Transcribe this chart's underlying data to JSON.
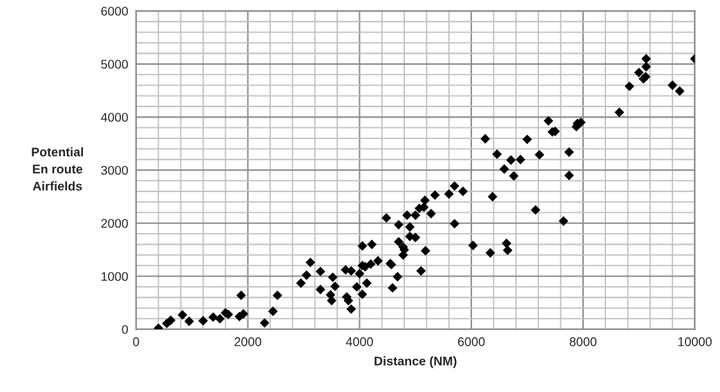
{
  "chart_data": {
    "type": "scatter",
    "xlabel": "Distance (NM)",
    "ylabel": "Potential\nEn route\nAirfields",
    "marker": "diamond",
    "grid": true,
    "xlim": [
      0,
      10000
    ],
    "ylim": [
      0,
      6000
    ],
    "xticks": [
      0,
      {
        "value": 400,
        "label": null
      },
      {
        "value": 800,
        "label": null
      },
      {
        "value": 1200,
        "label": null
      },
      {
        "value": 1600,
        "label": null
      },
      2000,
      {
        "value": 2400,
        "label": null
      },
      {
        "value": 2800,
        "label": null
      },
      {
        "value": 3200,
        "label": null
      },
      {
        "value": 3600,
        "label": null
      },
      4000,
      {
        "value": 4400,
        "label": null
      },
      {
        "value": 4800,
        "label": null
      },
      {
        "value": 5200,
        "label": null
      },
      {
        "value": 5600,
        "label": null
      },
      6000,
      {
        "value": 6400,
        "label": null
      },
      {
        "value": 6800,
        "label": null
      },
      {
        "value": 7200,
        "label": null
      },
      {
        "value": 7600,
        "label": null
      },
      8000,
      {
        "value": 8400,
        "label": null
      },
      {
        "value": 8800,
        "label": null
      },
      {
        "value": 9200,
        "label": null
      },
      {
        "value": 9600,
        "label": null
      },
      10000
    ],
    "yticks": [
      0,
      {
        "value": 200,
        "label": null
      },
      {
        "value": 400,
        "label": null
      },
      {
        "value": 600,
        "label": null
      },
      {
        "value": 800,
        "label": null
      },
      1000,
      {
        "value": 1200,
        "label": null
      },
      {
        "value": 1400,
        "label": null
      },
      {
        "value": 1600,
        "label": null
      },
      {
        "value": 1800,
        "label": null
      },
      2000,
      {
        "value": 2200,
        "label": null
      },
      {
        "value": 2400,
        "label": null
      },
      {
        "value": 2600,
        "label": null
      },
      {
        "value": 2800,
        "label": null
      },
      3000,
      {
        "value": 3200,
        "label": null
      },
      {
        "value": 3400,
        "label": null
      },
      {
        "value": 3600,
        "label": null
      },
      {
        "value": 3800,
        "label": null
      },
      4000,
      {
        "value": 4200,
        "label": null
      },
      {
        "value": 4400,
        "label": null
      },
      {
        "value": 4600,
        "label": null
      },
      {
        "value": 4800,
        "label": null
      },
      5000,
      {
        "value": 5200,
        "label": null
      },
      {
        "value": 5400,
        "label": null
      },
      {
        "value": 5600,
        "label": null
      },
      {
        "value": 5800,
        "label": null
      },
      6000
    ],
    "series": [
      {
        "color": "#000000",
        "x": [
          400,
          550,
          620,
          830,
          950,
          1200,
          1380,
          1500,
          1600,
          1650,
          1850,
          1880,
          1920,
          2300,
          2450,
          2530,
          2950,
          3050,
          3120,
          3300,
          3300,
          3480,
          3500,
          3520,
          3560,
          3750,
          3770,
          3800,
          3850,
          3850,
          3950,
          4000,
          4050,
          4050,
          4050,
          4100,
          4130,
          4200,
          4220,
          4330,
          4480,
          4550,
          4570,
          4590,
          4680,
          4700,
          4700,
          4780,
          4780,
          4800,
          4850,
          4900,
          4900,
          5000,
          5000,
          5070,
          5100,
          5150,
          5170,
          5180,
          5280,
          5350,
          5600,
          5700,
          5700,
          5850,
          6030,
          6250,
          6340,
          6380,
          6460,
          6590,
          6630,
          6650,
          6710,
          6760,
          6880,
          7000,
          7150,
          7220,
          7380,
          7450,
          7500,
          7650,
          7750,
          7750,
          7880,
          7900,
          7960,
          8650,
          8830,
          9000,
          9080,
          9120,
          9130,
          9130,
          9600,
          9730,
          10000
        ],
        "values": [
          20,
          110,
          170,
          270,
          150,
          160,
          230,
          200,
          310,
          280,
          240,
          640,
          290,
          120,
          340,
          640,
          870,
          1020,
          1260,
          1090,
          750,
          650,
          540,
          980,
          810,
          1120,
          610,
          540,
          1100,
          380,
          800,
          1050,
          660,
          1570,
          1200,
          1180,
          870,
          1230,
          1600,
          1290,
          2100,
          1240,
          1220,
          780,
          990,
          1970,
          1650,
          1400,
          1550,
          1500,
          2150,
          1930,
          1750,
          1730,
          2150,
          2280,
          1100,
          2300,
          2430,
          1480,
          2180,
          2530,
          2550,
          2700,
          1990,
          2600,
          1580,
          3590,
          1440,
          2500,
          3300,
          3020,
          1620,
          1490,
          3190,
          2890,
          3200,
          3580,
          2250,
          3290,
          3930,
          3720,
          3730,
          2040,
          3340,
          2900,
          3820,
          3880,
          3900,
          4090,
          4580,
          4840,
          4720,
          4760,
          5100,
          4950,
          4600,
          4490,
          5100
        ]
      }
    ]
  }
}
